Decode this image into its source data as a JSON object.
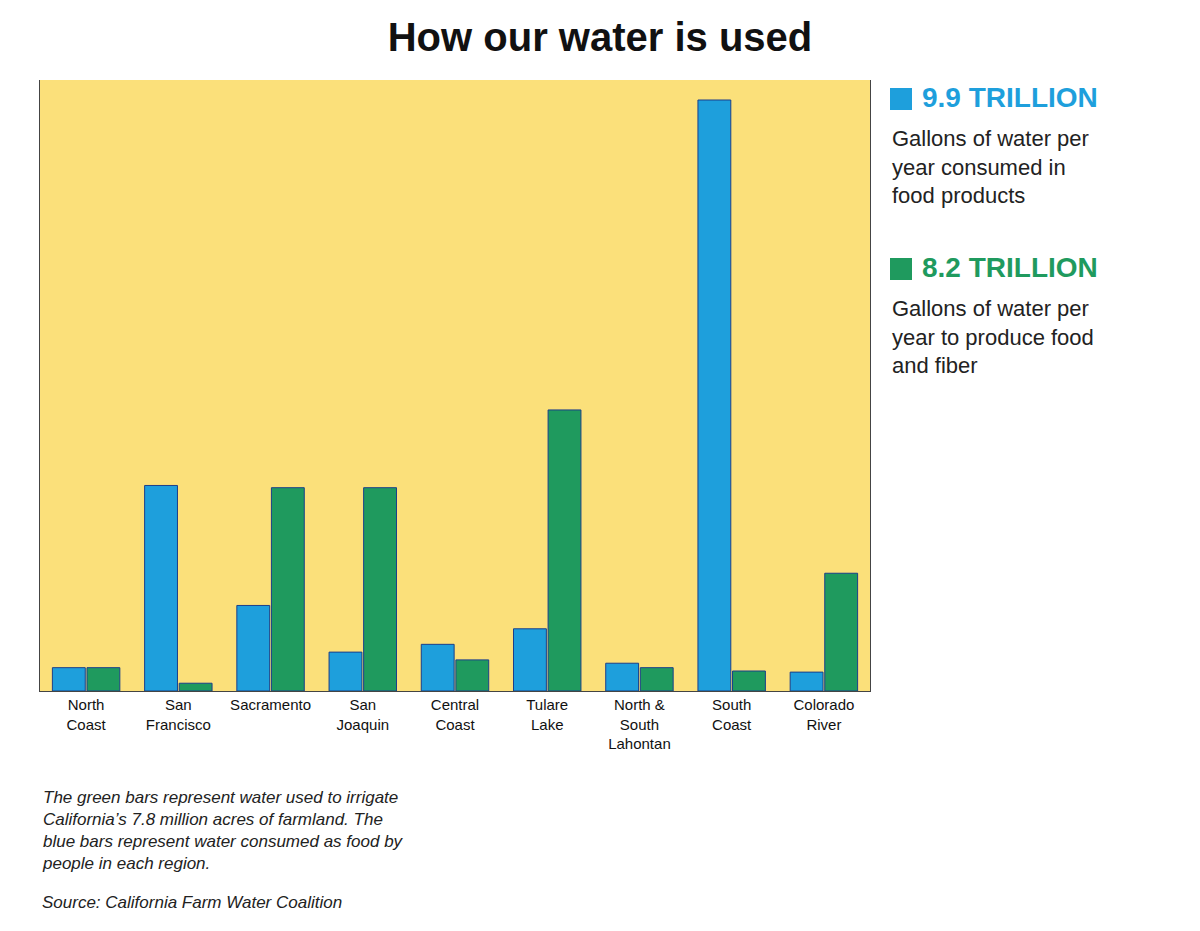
{
  "chart_data": {
    "type": "bar",
    "title": "How our water is used",
    "categories": [
      "North Coast",
      "San Francisco",
      "Sacramento",
      "San Joaquin",
      "Central Coast",
      "Tulare Lake",
      "North & South Lahontan",
      "South Coast",
      "Colorado River"
    ],
    "series": [
      {
        "name": "Gallons of water per year consumed in food products",
        "total_label": "9.9 TRILLION",
        "color": "#1e9fdc",
        "values": [
          0.21,
          1.85,
          0.77,
          0.35,
          0.42,
          0.56,
          0.25,
          5.32,
          0.17
        ]
      },
      {
        "name": "Gallons of water per year to produce food and fiber",
        "total_label": "8.2 TRILLION",
        "color": "#1f9a5e",
        "values": [
          0.21,
          0.07,
          1.83,
          1.83,
          0.28,
          2.53,
          0.21,
          0.18,
          1.06
        ]
      }
    ],
    "ylim": [
      0,
      5.5
    ],
    "tick_labels": "x",
    "grid": false,
    "data_labels": false,
    "note": "The green bars represent water used to irrigate California’s 7.8 million acres of farmland. The blue bars represent water consumed as food by people in each region.",
    "source": "Source: California Farm Water Coalition"
  }
}
